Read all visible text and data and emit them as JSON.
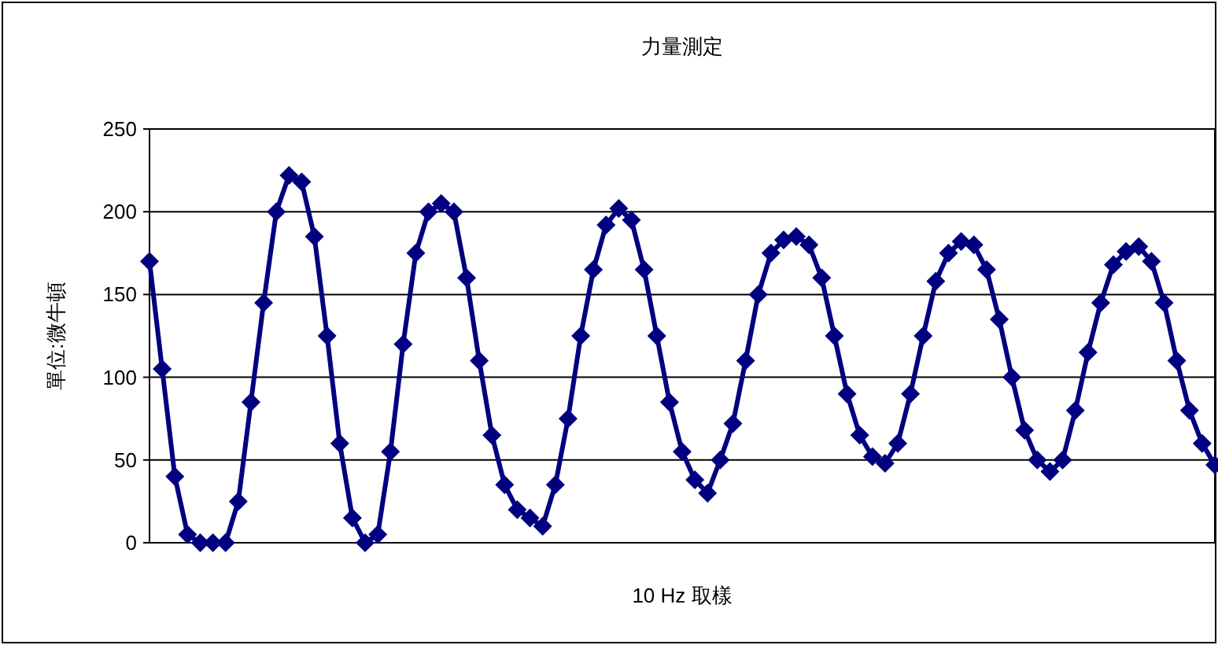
{
  "chart_data": {
    "type": "line",
    "title": "力量測定",
    "xlabel": "10 Hz 取樣",
    "ylabel": "單位:微牛頓",
    "categories": [
      null,
      null,
      null,
      null,
      null,
      null,
      null,
      null,
      null,
      null,
      null,
      null,
      null,
      null,
      null,
      null,
      null,
      null,
      null,
      null,
      null,
      null,
      null,
      null,
      null,
      null,
      null,
      null,
      null,
      null,
      null,
      null,
      null,
      null,
      null,
      null,
      null,
      null,
      null,
      null,
      null,
      null,
      null,
      null,
      null,
      null,
      null,
      null,
      null,
      null,
      null,
      null,
      null,
      null,
      null,
      null,
      null,
      null,
      null,
      null,
      null,
      null,
      null,
      null,
      null,
      null,
      null,
      null,
      null,
      null,
      null,
      null,
      null,
      null,
      null,
      null,
      null,
      null,
      null,
      null,
      null,
      null,
      null,
      null,
      null
    ],
    "series": [
      {
        "color": "#000080",
        "values": [
          170,
          105,
          40,
          5,
          0,
          0,
          0,
          25,
          85,
          145,
          200,
          222,
          218,
          185,
          125,
          60,
          15,
          0,
          5,
          55,
          120,
          175,
          200,
          205,
          200,
          160,
          110,
          65,
          35,
          20,
          15,
          10,
          35,
          75,
          125,
          165,
          192,
          202,
          195,
          165,
          125,
          85,
          55,
          38,
          30,
          50,
          72,
          110,
          150,
          175,
          183,
          185,
          180,
          160,
          125,
          90,
          65,
          52,
          48,
          60,
          90,
          125,
          158,
          175,
          182,
          180,
          165,
          135,
          100,
          68,
          50,
          43,
          50,
          80,
          115,
          145,
          168,
          176,
          179,
          170,
          145,
          110,
          80,
          60,
          47
        ]
      }
    ],
    "ylim": [
      0,
      250
    ],
    "yticks": [
      0,
      50,
      100,
      150,
      200,
      250
    ],
    "grid": "y",
    "marker": "diamond",
    "line_style": "solid"
  }
}
